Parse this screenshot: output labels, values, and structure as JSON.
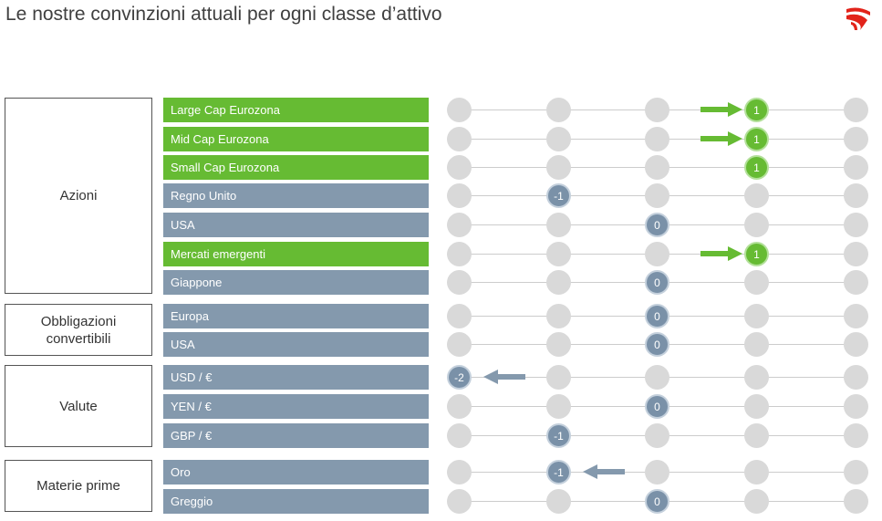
{
  "title": "Le nostre convinzioni attuali per ogni classe d’attivo",
  "logo_icon": "red-wave-logo",
  "colors": {
    "positive": "#66bb33",
    "neutral": "#8499ad",
    "marker_neg": "#7a91a8",
    "dot": "#d9d9d9",
    "arrow_pos": "#66bb33",
    "arrow_neg": "#8499ad"
  },
  "chart_data": {
    "type": "table",
    "scale": [
      -2,
      -1,
      0,
      1,
      2
    ],
    "groups": [
      {
        "name": "Azioni",
        "rows": [
          {
            "label": "Large Cap Eurozona",
            "value": 1,
            "arrow": "up"
          },
          {
            "label": "Mid Cap Eurozona",
            "value": 1,
            "arrow": "up"
          },
          {
            "label": "Small Cap Eurozona",
            "value": 1,
            "arrow": "none"
          },
          {
            "label": "Regno Unito",
            "value": -1,
            "arrow": "none"
          },
          {
            "label": "USA",
            "value": 0,
            "arrow": "none"
          },
          {
            "label": "Mercati emergenti",
            "value": 1,
            "arrow": "up"
          },
          {
            "label": "Giappone",
            "value": 0,
            "arrow": "none"
          }
        ]
      },
      {
        "name": "Obbligazioni convertibili",
        "rows": [
          {
            "label": "Europa",
            "value": 0,
            "arrow": "none"
          },
          {
            "label": "USA",
            "value": 0,
            "arrow": "none"
          }
        ]
      },
      {
        "name": "Valute",
        "rows": [
          {
            "label": "USD / €",
            "value": -2,
            "arrow": "down"
          },
          {
            "label": "YEN / €",
            "value": 0,
            "arrow": "none"
          },
          {
            "label": "GBP / €",
            "value": -1,
            "arrow": "none"
          }
        ]
      },
      {
        "name": "Materie prime",
        "rows": [
          {
            "label": "Oro",
            "value": -1,
            "arrow": "down"
          },
          {
            "label": "Greggio",
            "value": 0,
            "arrow": "none"
          }
        ]
      }
    ]
  }
}
